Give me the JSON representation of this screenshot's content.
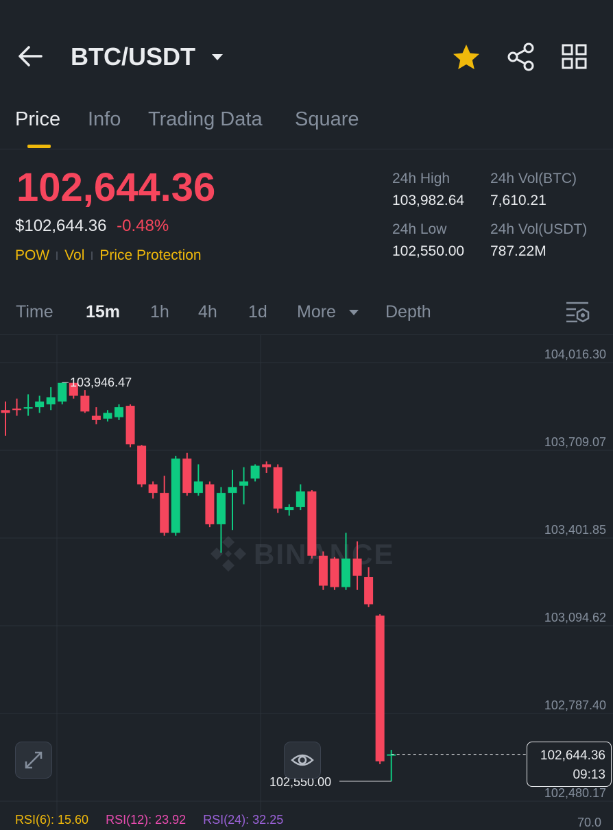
{
  "header": {
    "pair": "BTC/USDT"
  },
  "tabs": [
    {
      "label": "Price"
    },
    {
      "label": "Info"
    },
    {
      "label": "Trading Data"
    },
    {
      "label": "Square"
    }
  ],
  "ticker": {
    "last_price": "102,644.36",
    "usd_price": "$102,644.36",
    "change": "-0.48%",
    "tags": [
      "POW",
      "Vol",
      "Price Protection"
    ],
    "high_label": "24h High",
    "high_value": "103,982.64",
    "vol_btc_label": "24h Vol(BTC)",
    "vol_btc_value": "7,610.21",
    "low_label": "24h Low",
    "low_value": "102,550.00",
    "vol_usdt_label": "24h Vol(USDT)",
    "vol_usdt_value": "787.22M"
  },
  "timeframes": {
    "items": [
      "Time",
      "15m",
      "1h",
      "4h",
      "1d",
      "More",
      "Depth"
    ],
    "active": "15m"
  },
  "chart": {
    "watermark": "BINANCE",
    "current_price_tag": "102,644.36",
    "countdown": "09:13",
    "high_marker": "103,946.47",
    "low_marker": "102,550.00",
    "y_axis_labels": [
      "104,016.30",
      "103,709.07",
      "103,401.85",
      "103,094.62",
      "102,787.40",
      "102,480.17"
    ]
  },
  "indicators": {
    "rsi6": "RSI(6): 15.60",
    "rsi12": "RSI(12): 23.92",
    "rsi24": "RSI(24): 32.25",
    "rsi_axis": "70.0"
  },
  "chart_data": {
    "type": "candlestick",
    "title": "",
    "ylim": [
      102400,
      104100
    ],
    "y_ticks": [
      104016.3,
      103709.07,
      103401.85,
      103094.62,
      102787.4,
      102480.17
    ],
    "candles": [
      {
        "o": 103850,
        "h": 103880,
        "l": 103760,
        "c": 103840
      },
      {
        "o": 103855,
        "h": 103890,
        "l": 103830,
        "c": 103850
      },
      {
        "o": 103855,
        "h": 103905,
        "l": 103830,
        "c": 103860
      },
      {
        "o": 103860,
        "h": 103900,
        "l": 103840,
        "c": 103880
      },
      {
        "o": 103870,
        "h": 103930,
        "l": 103850,
        "c": 103895
      },
      {
        "o": 103880,
        "h": 103946.47,
        "l": 103870,
        "c": 103945
      },
      {
        "o": 103945,
        "h": 103946,
        "l": 103890,
        "c": 103900
      },
      {
        "o": 103900,
        "h": 103920,
        "l": 103840,
        "c": 103845
      },
      {
        "o": 103830,
        "h": 103860,
        "l": 103800,
        "c": 103815
      },
      {
        "o": 103820,
        "h": 103850,
        "l": 103810,
        "c": 103840
      },
      {
        "o": 103825,
        "h": 103870,
        "l": 103815,
        "c": 103860
      },
      {
        "o": 103865,
        "h": 103870,
        "l": 103720,
        "c": 103730
      },
      {
        "o": 103725,
        "h": 103728,
        "l": 103580,
        "c": 103590
      },
      {
        "o": 103590,
        "h": 103600,
        "l": 103540,
        "c": 103560
      },
      {
        "o": 103560,
        "h": 103620,
        "l": 103410,
        "c": 103420
      },
      {
        "o": 103420,
        "h": 103690,
        "l": 103410,
        "c": 103680
      },
      {
        "o": 103680,
        "h": 103700,
        "l": 103550,
        "c": 103560
      },
      {
        "o": 103560,
        "h": 103660,
        "l": 103550,
        "c": 103600
      },
      {
        "o": 103590,
        "h": 103600,
        "l": 103440,
        "c": 103450
      },
      {
        "o": 103450,
        "h": 103580,
        "l": 103350,
        "c": 103560
      },
      {
        "o": 103560,
        "h": 103640,
        "l": 103430,
        "c": 103580
      },
      {
        "o": 103585,
        "h": 103650,
        "l": 103520,
        "c": 103600
      },
      {
        "o": 103610,
        "h": 103660,
        "l": 103600,
        "c": 103655
      },
      {
        "o": 103660,
        "h": 103670,
        "l": 103630,
        "c": 103650
      },
      {
        "o": 103650,
        "h": 103660,
        "l": 103490,
        "c": 103505
      },
      {
        "o": 103500,
        "h": 103520,
        "l": 103480,
        "c": 103510
      },
      {
        "o": 103510,
        "h": 103590,
        "l": 103500,
        "c": 103565
      },
      {
        "o": 103565,
        "h": 103570,
        "l": 103330,
        "c": 103340
      },
      {
        "o": 103340,
        "h": 103355,
        "l": 103220,
        "c": 103235
      },
      {
        "o": 103330,
        "h": 103335,
        "l": 103220,
        "c": 103230
      },
      {
        "o": 103230,
        "h": 103420,
        "l": 103220,
        "c": 103330
      },
      {
        "o": 103330,
        "h": 103390,
        "l": 103220,
        "c": 103270
      },
      {
        "o": 103265,
        "h": 103300,
        "l": 103160,
        "c": 103170
      },
      {
        "o": 103130,
        "h": 103135,
        "l": 102610,
        "c": 102620
      },
      {
        "o": 102644,
        "h": 102660,
        "l": 102550,
        "c": 102644.36
      }
    ],
    "price_line": 102644.36
  }
}
